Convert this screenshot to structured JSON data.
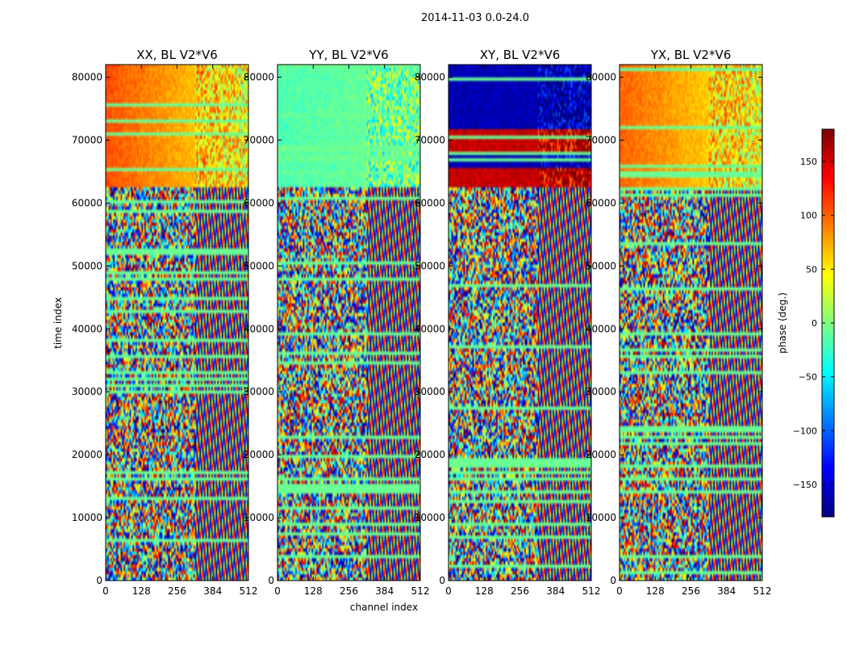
{
  "figure": {
    "suptitle": "2014-11-03 0.0-24.0"
  },
  "chart_data": {
    "type": "heatmap",
    "xlabel": "channel index",
    "ylabel": "time index",
    "xlim": [
      0,
      512
    ],
    "ylim": [
      0,
      82000
    ],
    "xticks": [
      "0",
      "128",
      "256",
      "384",
      "512"
    ],
    "yticks": [
      "0",
      "10000",
      "20000",
      "30000",
      "40000",
      "50000",
      "60000",
      "70000",
      "80000"
    ],
    "colorbar": {
      "label": "phase (deg.)",
      "range": [
        -180,
        180
      ],
      "ticks": [
        "150",
        "100",
        "50",
        "0",
        "−50",
        "−100",
        "−150"
      ],
      "colormap": "jet"
    },
    "panels": [
      {
        "title": "XX, BL V2*V6",
        "pol": "XX"
      },
      {
        "title": "YY, BL V2*V6",
        "pol": "YY"
      },
      {
        "title": "XY, BL V2*V6",
        "pol": "XY"
      },
      {
        "title": "YX, BL V2*V6",
        "pol": "YX"
      }
    ]
  }
}
